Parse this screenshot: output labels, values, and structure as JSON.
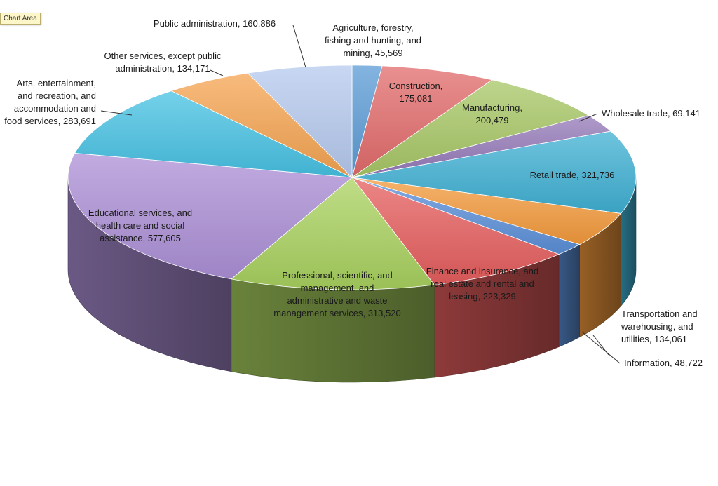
{
  "tooltip": "Chart Area",
  "chart_data": {
    "type": "pie",
    "title": "",
    "series": [
      {
        "name": "",
        "values": [
          45569,
          175081,
          200479,
          69141,
          321736,
          134061,
          48722,
          223329,
          313520,
          577605,
          283691,
          134171,
          160886
        ]
      }
    ],
    "categories": [
      "Agriculture, forestry, fishing and hunting, and mining",
      "Construction",
      "Manufacturing",
      "Wholesale trade",
      "Retail trade",
      "Transportation and warehousing, and utilities",
      "Information",
      "Finance and insurance, and real estate and rental and leasing",
      "Professional, scientific, and management, and administrative and waste management services",
      "Educational services, and health care and social assistance",
      "Arts, entertainment, and recreation, and accommodation and food services",
      "Other services, except public administration",
      "Public administration"
    ],
    "slices": [
      {
        "lines": [
          "Agriculture, forestry,",
          "fishing and hunting, and",
          "mining, 45,569"
        ],
        "color": "#5b9bd5"
      },
      {
        "lines": [
          "Construction,",
          "175,081"
        ],
        "color": "#e26b6b"
      },
      {
        "lines": [
          "Manufacturing,",
          "200,479"
        ],
        "color": "#a7c765"
      },
      {
        "lines": [
          "Wholesale trade, 69,141"
        ],
        "color": "#9479b8"
      },
      {
        "lines": [
          "Retail trade, 321,736"
        ],
        "color": "#3fb0d3"
      },
      {
        "lines": [
          "Transportation and",
          "warehousing, and",
          "utilities, 134,061"
        ],
        "color": "#f39a3c"
      },
      {
        "lines": [
          "Information, 48,722"
        ],
        "color": "#5b8fd8"
      },
      {
        "lines": [
          "Finance and insurance, and",
          "real estate and rental and",
          "leasing, 223,329"
        ],
        "color": "#e55e5e"
      },
      {
        "lines": [
          "Professional, scientific, and",
          "management, and",
          "administrative and waste",
          "management services, 313,520"
        ],
        "color": "#a9d15f"
      },
      {
        "lines": [
          "Educational services, and",
          "health care and social",
          "assistance, 577,605"
        ],
        "color": "#ac8fd6"
      },
      {
        "lines": [
          "Arts, entertainment,",
          "and recreation, and",
          "accommodation and",
          "food services, 283,691"
        ],
        "color": "#47c2e3"
      },
      {
        "lines": [
          "Other services, except public",
          "administration, 134,171"
        ],
        "color": "#f5a452"
      },
      {
        "lines": [
          "Public administration, 160,886"
        ],
        "color": "#b5c9ee"
      }
    ],
    "legend": "none",
    "grid": false,
    "style": "3d-tilted"
  }
}
